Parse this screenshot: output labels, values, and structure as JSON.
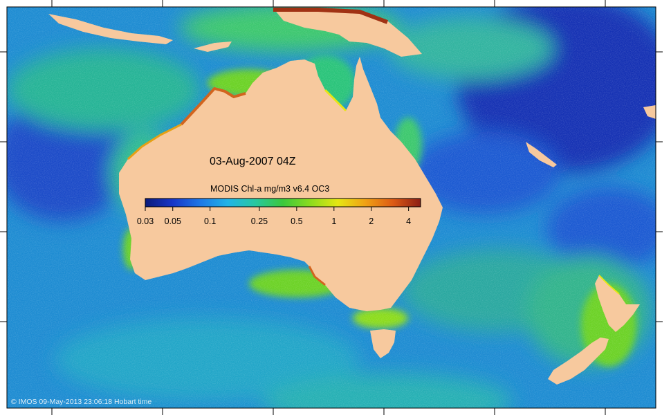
{
  "map": {
    "date_label": "03-Aug-2007 04Z",
    "legend": {
      "title": "MODIS Chl-a mg/m3 v6.4 OC3",
      "ticks": [
        "0.03",
        "0.05",
        "0.1",
        "0.25",
        "0.5",
        "1",
        "2",
        "4"
      ],
      "tick_values": [
        0.03,
        0.05,
        0.1,
        0.25,
        0.5,
        1,
        2,
        4
      ],
      "range": [
        0.03,
        5
      ],
      "scale": "log",
      "colors": [
        "#0a1a7a",
        "#1836c8",
        "#1e78e6",
        "#22b4e6",
        "#28c8a0",
        "#3cc83c",
        "#8cdc1e",
        "#e6e614",
        "#f0a014",
        "#dc5a14",
        "#8c1e14"
      ]
    },
    "copyright": "© IMOS 09-May-2013 23:06:18 Hobart time",
    "colors": {
      "land": "#f7c99e",
      "deep_ocean": "#1442c8",
      "mid_ocean": "#1e8cd2",
      "coastal": "#2cc47a",
      "bloom": "#8cdc1e",
      "high": "#d2641e",
      "very_high": "#a03214"
    }
  }
}
